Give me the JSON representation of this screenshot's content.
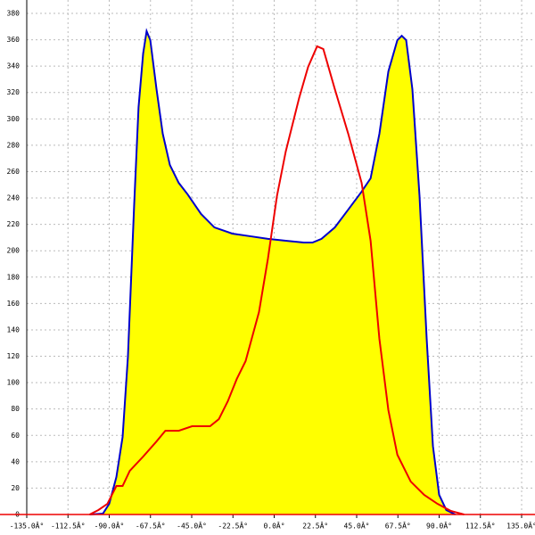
{
  "chart_data": {
    "type": "area",
    "xlim": [
      -135,
      135
    ],
    "ylim": [
      0,
      380
    ],
    "xticks": [
      {
        "value": -135,
        "label": "-135.0Â°"
      },
      {
        "value": -112.5,
        "label": "-112.5Â°"
      },
      {
        "value": -90,
        "label": "-90.0Â°"
      },
      {
        "value": -67.5,
        "label": "-67.5Â°"
      },
      {
        "value": -45,
        "label": "-45.0Â°"
      },
      {
        "value": -22.5,
        "label": "-22.5Â°"
      },
      {
        "value": 0,
        "label": "0.0Â°"
      },
      {
        "value": 22.5,
        "label": "22.5Â°"
      },
      {
        "value": 45,
        "label": "45.0Â°"
      },
      {
        "value": 67.5,
        "label": "67.5Â°"
      },
      {
        "value": 90,
        "label": "90.0Â°"
      },
      {
        "value": 112.5,
        "label": "112.5Â°"
      },
      {
        "value": 135,
        "label": "135.0Â°"
      }
    ],
    "yticks": [
      0,
      20,
      40,
      60,
      80,
      100,
      120,
      140,
      160,
      180,
      200,
      220,
      240,
      260,
      280,
      300,
      320,
      340,
      360,
      380
    ],
    "grid": true,
    "series": [
      {
        "color": "#0000cc",
        "fill": "#ffff00",
        "x": [
          -100.7,
          -93.4,
          -90,
          -86.1,
          -82.7,
          -79.8,
          -76.4,
          -74.0,
          -71.5,
          -69.6,
          -67.6,
          -64.2,
          -60.8,
          -56.9,
          -52.1,
          -47.2,
          -39.9,
          -32.6,
          -22.9,
          -13.1,
          -3.4,
          6.3,
          16.1,
          20.9,
          25.8,
          33.1,
          40.4,
          47.7,
          52.6,
          57.4,
          62.3,
          67.2,
          69.6,
          72,
          75.4,
          79.3,
          83.2,
          86.6,
          90,
          93.9,
          98.8
        ],
        "values": [
          0,
          0.7,
          8.1,
          28.4,
          58.8,
          119.6,
          234.6,
          308.9,
          349.5,
          366.5,
          359.7,
          322.5,
          288.7,
          265,
          251.5,
          242.7,
          227.9,
          217.7,
          213,
          211,
          209,
          207.6,
          206.2,
          206.2,
          209,
          217.7,
          231.2,
          244.8,
          254.9,
          288.7,
          336,
          359.7,
          363,
          359.7,
          322.5,
          241.4,
          133.2,
          52,
          14.9,
          3.4,
          0
        ]
      },
      {
        "color": "#ee0000",
        "x": [
          -100.7,
          -95.9,
          -91.0,
          -86.1,
          -82.7,
          -78.8,
          -71.5,
          -64.2,
          -59.4,
          -52.1,
          -44.8,
          -35.0,
          -30.2,
          -25.3,
          -20.4,
          -15.6,
          -8.3,
          -3.4,
          1.5,
          6.3,
          13.6,
          18.5,
          23.4,
          26.8,
          33.1,
          40.4,
          47.7,
          52.6,
          57.4,
          62.3,
          67.2,
          74.5,
          81.8,
          89.1,
          96.4,
          103.6
        ],
        "values": [
          0,
          3.4,
          8.1,
          21.6,
          21.6,
          33.1,
          43.9,
          55.4,
          63.5,
          63.5,
          66.9,
          66.9,
          72.3,
          85.9,
          102.8,
          116.3,
          153.5,
          194.1,
          241.4,
          275.2,
          315.8,
          339.4,
          355,
          353,
          322.5,
          288.7,
          251.5,
          207.6,
          133.2,
          79.1,
          45.3,
          25,
          14.9,
          8.1,
          2.7,
          0
        ]
      }
    ]
  }
}
